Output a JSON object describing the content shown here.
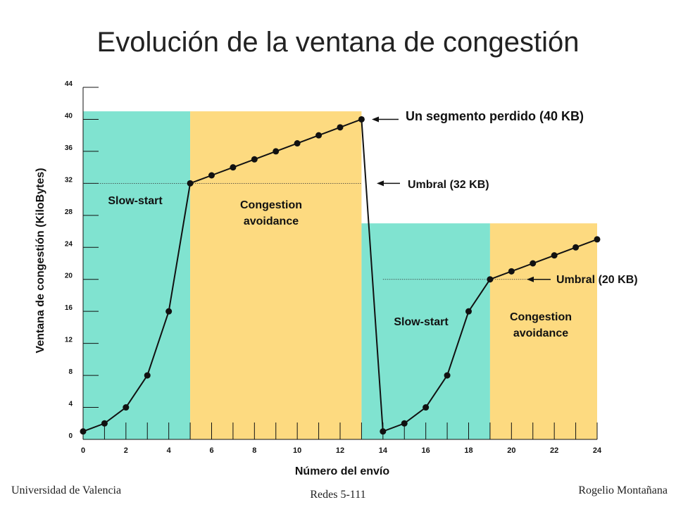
{
  "slide": {
    "title": "Evolución de la ventana de congestión",
    "footer_left": "Universidad de Valencia",
    "footer_center": "Redes 5-111",
    "footer_right": "Rogelio Montañana"
  },
  "colors": {
    "slow_start": "#80E3D0",
    "congestion_avoidance": "#FDDA80",
    "line": "#111111"
  },
  "chart_data": {
    "type": "line",
    "xlabel": "Número del envío",
    "ylabel": "Ventana de congestión (KiloBytes)",
    "xlim": [
      0,
      24
    ],
    "ylim": [
      0,
      44
    ],
    "xticks": [
      0,
      2,
      4,
      6,
      8,
      10,
      12,
      14,
      16,
      18,
      20,
      22,
      24
    ],
    "yticks": [
      0,
      4,
      8,
      12,
      16,
      20,
      24,
      28,
      32,
      36,
      40,
      44
    ],
    "series": [
      {
        "x": [
          0,
          1,
          2,
          3,
          4,
          5,
          6,
          7,
          8,
          9,
          10,
          11,
          12,
          13,
          14,
          15,
          16,
          17,
          18,
          19,
          20,
          21,
          22,
          23,
          24
        ],
        "y": [
          1,
          2,
          4,
          8,
          16,
          32,
          33,
          34,
          35,
          36,
          37,
          38,
          39,
          40,
          1,
          2,
          4,
          8,
          16,
          20,
          21,
          22,
          23,
          24,
          25
        ]
      }
    ],
    "regions": [
      {
        "label": "Slow-start",
        "phase": "slow_start",
        "x0": 0,
        "x1": 5,
        "height": 41
      },
      {
        "label": "Congestion avoidance",
        "phase": "congestion_avoidance",
        "x0": 5,
        "x1": 13,
        "height": 41
      },
      {
        "label": "Slow-start",
        "phase": "slow_start",
        "x0": 13,
        "x1": 19,
        "height": 27
      },
      {
        "label": "Congestion avoidance",
        "phase": "congestion_avoidance",
        "x0": 19,
        "x1": 24,
        "height": 27
      }
    ],
    "thresholds": [
      {
        "y": 32,
        "x0": 0,
        "x1": 13
      },
      {
        "y": 20,
        "x0": 14,
        "x1": 21
      }
    ],
    "annotations": [
      {
        "text": "Un segmento perdido (40 KB)",
        "x": 13,
        "y": 40
      },
      {
        "text": "Umbral (32 KB)",
        "x": 13,
        "y": 32
      },
      {
        "text": "Umbral (20 KB)",
        "x": 21,
        "y": 20
      }
    ]
  }
}
